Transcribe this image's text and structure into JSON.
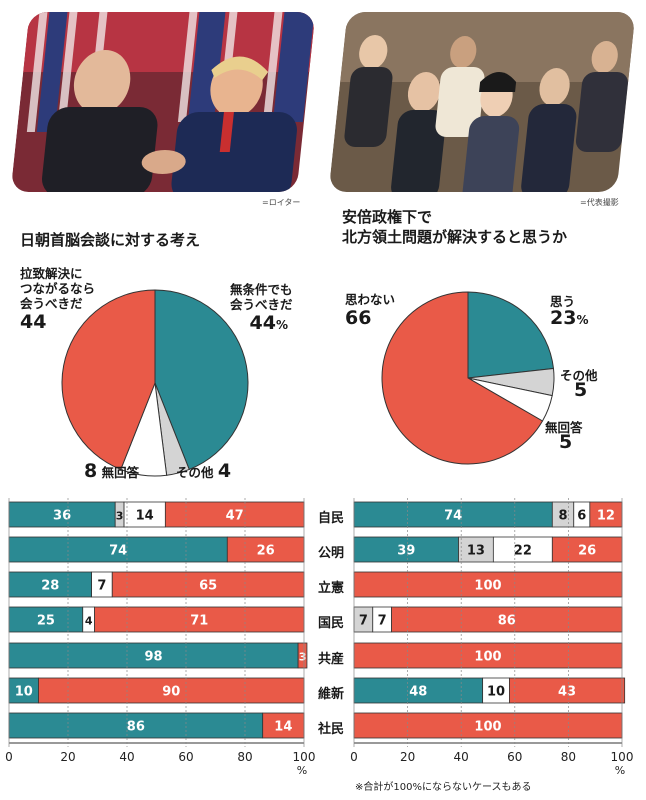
{
  "credits": {
    "left": "=ロイター",
    "right": "=代表撮影"
  },
  "colors": {
    "teal": "#2b8a93",
    "red": "#e95a48",
    "white": "#ffffff",
    "gray": "#d4d4d4"
  },
  "pie_left": {
    "title": "日朝首脳会談に対する考え",
    "labels": {
      "yes": [
        "拉致解決に",
        "つながるなら",
        "会うべきだ"
      ],
      "yes_value": "44",
      "uncond": [
        "無条件でも",
        "会うべきだ"
      ],
      "uncond_value": "44",
      "pct": "%",
      "none": "無回答",
      "none_value": "8",
      "other": "その他",
      "other_value": "4"
    }
  },
  "pie_right": {
    "title_lines": [
      "安倍政権下で",
      "北方領土問題が解決すると思うか"
    ],
    "labels": {
      "no": "思わない",
      "no_value": "66",
      "yes": "思う",
      "yes_value": "23",
      "pct": "%",
      "other": "その他",
      "other_value": "5",
      "none": "無回答",
      "none_value": "5"
    }
  },
  "parties": [
    "自民",
    "公明",
    "立憲",
    "国民",
    "共産",
    "維新",
    "社民"
  ],
  "axis": {
    "ticks": [
      "0",
      "20",
      "40",
      "60",
      "80",
      "100"
    ],
    "unit": "%"
  },
  "note": "※合計が100%にならないケースもある",
  "chart_data": [
    {
      "type": "pie",
      "title": "日朝首脳会談に対する考え",
      "slices": [
        {
          "name": "無条件でも会うべきだ",
          "value": 44,
          "color": "#2b8a93"
        },
        {
          "name": "その他",
          "value": 4,
          "color": "#d4d4d4"
        },
        {
          "name": "無回答",
          "value": 8,
          "color": "#ffffff"
        },
        {
          "name": "拉致解決につながるなら会うべきだ",
          "value": 44,
          "color": "#e95a48"
        }
      ]
    },
    {
      "type": "pie",
      "title": "安倍政権下で北方領土問題が解決すると思うか",
      "slices": [
        {
          "name": "思う",
          "value": 23,
          "color": "#2b8a93"
        },
        {
          "name": "その他",
          "value": 5,
          "color": "#d4d4d4"
        },
        {
          "name": "無回答",
          "value": 5,
          "color": "#ffffff"
        },
        {
          "name": "思わない",
          "value": 66,
          "color": "#e95a48"
        }
      ]
    },
    {
      "type": "bar",
      "stacked": true,
      "orientation": "horizontal",
      "categories": [
        "自民",
        "公明",
        "立憲",
        "国民",
        "共産",
        "維新",
        "社民"
      ],
      "xlim": [
        0,
        100
      ],
      "series": [
        {
          "values": [
            36,
            74,
            28,
            25,
            98,
            10,
            86
          ],
          "color": "#2b8a93"
        },
        {
          "values": [
            3,
            0,
            0,
            0,
            0,
            0,
            0
          ],
          "color": "#d4d4d4"
        },
        {
          "values": [
            14,
            0,
            7,
            4,
            0,
            0,
            0
          ],
          "color": "#ffffff"
        },
        {
          "values": [
            47,
            26,
            65,
            71,
            3,
            90,
            14
          ],
          "color": "#e95a48"
        }
      ]
    },
    {
      "type": "bar",
      "stacked": true,
      "orientation": "horizontal",
      "categories": [
        "自民",
        "公明",
        "立憲",
        "国民",
        "共産",
        "維新",
        "社民"
      ],
      "xlim": [
        0,
        100
      ],
      "series": [
        {
          "values": [
            74,
            39,
            0,
            0,
            0,
            48,
            0
          ],
          "color": "#2b8a93"
        },
        {
          "values": [
            8,
            13,
            0,
            7,
            0,
            0,
            0
          ],
          "color": "#d4d4d4"
        },
        {
          "values": [
            6,
            22,
            0,
            7,
            0,
            10,
            0
          ],
          "color": "#ffffff"
        },
        {
          "values": [
            12,
            26,
            100,
            86,
            100,
            43,
            100
          ],
          "color": "#e95a48"
        }
      ]
    }
  ]
}
